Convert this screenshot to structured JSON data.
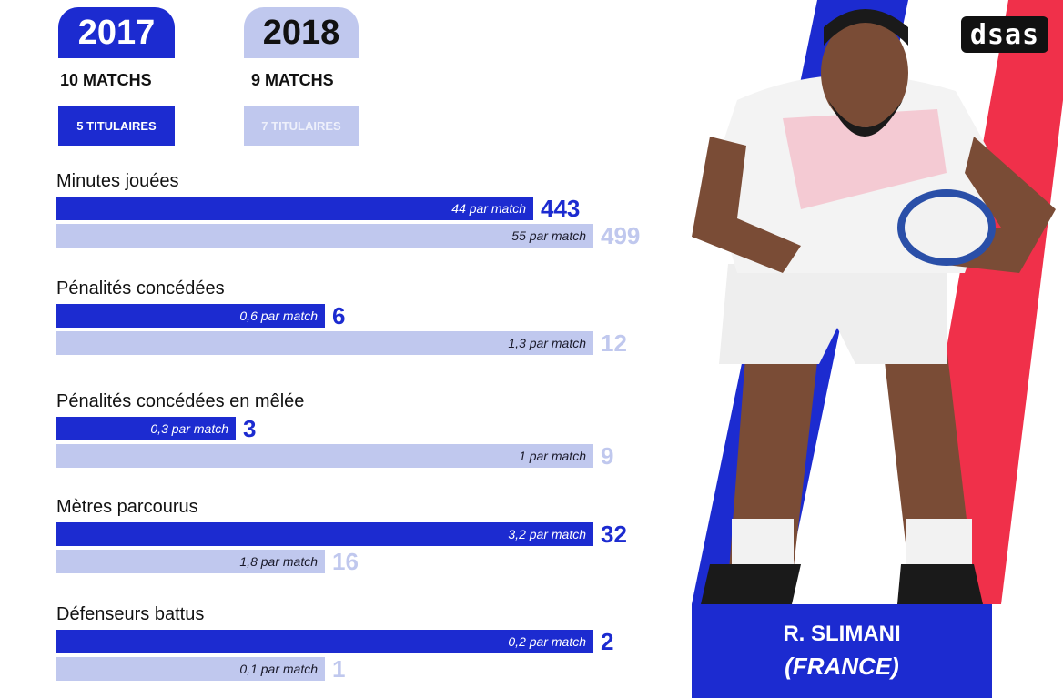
{
  "header": {
    "year_2017": "2017",
    "year_2018": "2018",
    "matchs_2017": "10 MATCHS",
    "matchs_2018": "9 MATCHS",
    "titulaires_2017": "5 TITULAIRES",
    "titulaires_2018": "7 TITULAIRES"
  },
  "logo": {
    "text": "dsas"
  },
  "player": {
    "name": "R. SLIMANI",
    "country": "(FRANCE)"
  },
  "colors": {
    "series_2017": "#1c2bd0",
    "series_2018": "#c0c8ee",
    "flag_blue": "#1c2bd0",
    "flag_red": "#f0304a"
  },
  "chart_data": {
    "type": "bar",
    "orientation": "horizontal",
    "series": [
      {
        "name": "2017",
        "color": "#1c2bd0"
      },
      {
        "name": "2018",
        "color": "#c0c8ee"
      }
    ],
    "categories": [
      {
        "title": "Minutes jouées",
        "values": [
          443,
          499
        ],
        "labels": [
          "44 par match",
          "55 par match"
        ],
        "value_text": [
          "443",
          "499"
        ]
      },
      {
        "title": "Pénalités concédées",
        "values": [
          6,
          12
        ],
        "labels": [
          "0,6 par match",
          "1,3 par match"
        ],
        "value_text": [
          "6",
          "12"
        ]
      },
      {
        "title": "Pénalités concédées en mêlée",
        "values": [
          3,
          9
        ],
        "labels": [
          "0,3 par match",
          "1 par match"
        ],
        "value_text": [
          "3",
          "9"
        ]
      },
      {
        "title": "Mètres parcourus",
        "values": [
          32,
          16
        ],
        "labels": [
          "3,2 par match",
          "1,8 par match"
        ],
        "value_text": [
          "32",
          "16"
        ]
      },
      {
        "title": "Défenseurs battus",
        "values": [
          2,
          1
        ],
        "labels": [
          "0,2 par match",
          "0,1 par match"
        ],
        "value_text": [
          "2",
          "1"
        ]
      }
    ]
  }
}
